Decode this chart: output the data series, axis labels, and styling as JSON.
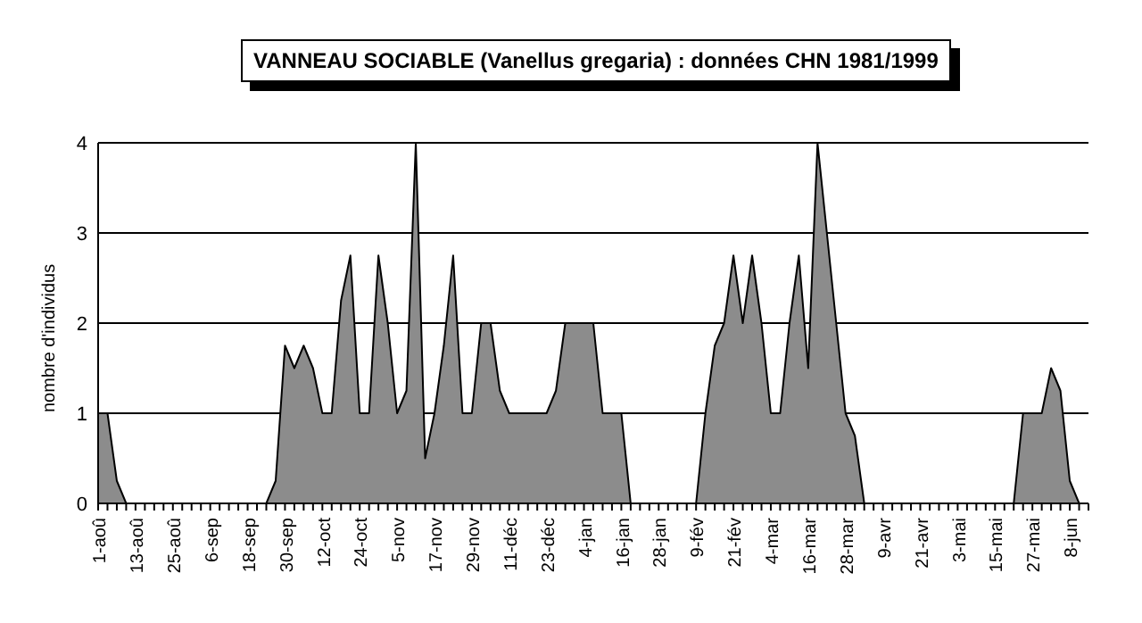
{
  "chart_data": {
    "type": "area",
    "title": "VANNEAU SOCIABLE (Vanellus gregaria) : données CHN 1981/1999",
    "ylabel": "nombre d'individus",
    "categories": [
      "1-aoû",
      null,
      null,
      null,
      "13-aoû",
      null,
      null,
      null,
      "25-aoû",
      null,
      null,
      null,
      "6-sep",
      null,
      null,
      null,
      "18-sep",
      null,
      null,
      null,
      "30-sep",
      null,
      null,
      null,
      "12-oct",
      null,
      null,
      null,
      "24-oct",
      null,
      null,
      null,
      "5-nov",
      null,
      null,
      null,
      "17-nov",
      null,
      null,
      null,
      "29-nov",
      null,
      null,
      null,
      "11-déc",
      null,
      null,
      null,
      "23-déc",
      null,
      null,
      null,
      "4-jan",
      null,
      null,
      null,
      "16-jan",
      null,
      null,
      null,
      "28-jan",
      null,
      null,
      null,
      "9-fév",
      null,
      null,
      null,
      "21-fév",
      null,
      null,
      null,
      "4-mar",
      null,
      null,
      null,
      "16-mar",
      null,
      null,
      null,
      "28-mar",
      null,
      null,
      null,
      "9-avr",
      null,
      null,
      null,
      "21-avr",
      null,
      null,
      null,
      "3-mai",
      null,
      null,
      null,
      "15-mai",
      null,
      null,
      null,
      "27-mai",
      null,
      null,
      null,
      "8-jun",
      null,
      null
    ],
    "series": [
      {
        "color": "#8c8c8c",
        "values": [
          1,
          1,
          0.25,
          0,
          0,
          0,
          0,
          0,
          0,
          0,
          0,
          0,
          0,
          0,
          0,
          0,
          0,
          0,
          0,
          0.25,
          1.75,
          1.5,
          1.75,
          1.5,
          1,
          1,
          2.25,
          2.75,
          1,
          1,
          2.75,
          2,
          1,
          1.25,
          4,
          0.5,
          1,
          1.75,
          2.75,
          1,
          1,
          2,
          2,
          1.25,
          1,
          1,
          1,
          1,
          1,
          1.25,
          2,
          2,
          2,
          2,
          1,
          1,
          1,
          0,
          0,
          0,
          0,
          0,
          0,
          0,
          0,
          1,
          1.75,
          2,
          2.75,
          2,
          2.75,
          2,
          1,
          1,
          2,
          2.75,
          1.5,
          4,
          3,
          2,
          1,
          0.75,
          0,
          0,
          0,
          0,
          0,
          0,
          0,
          0,
          0,
          0,
          0,
          0,
          0,
          0,
          0,
          0,
          0,
          1,
          1,
          1,
          1.5,
          1.25,
          0.25,
          0,
          0
        ]
      }
    ],
    "ylim": [
      0,
      4
    ],
    "yticks": [
      0,
      1,
      2,
      3,
      4
    ],
    "grid": "y"
  }
}
